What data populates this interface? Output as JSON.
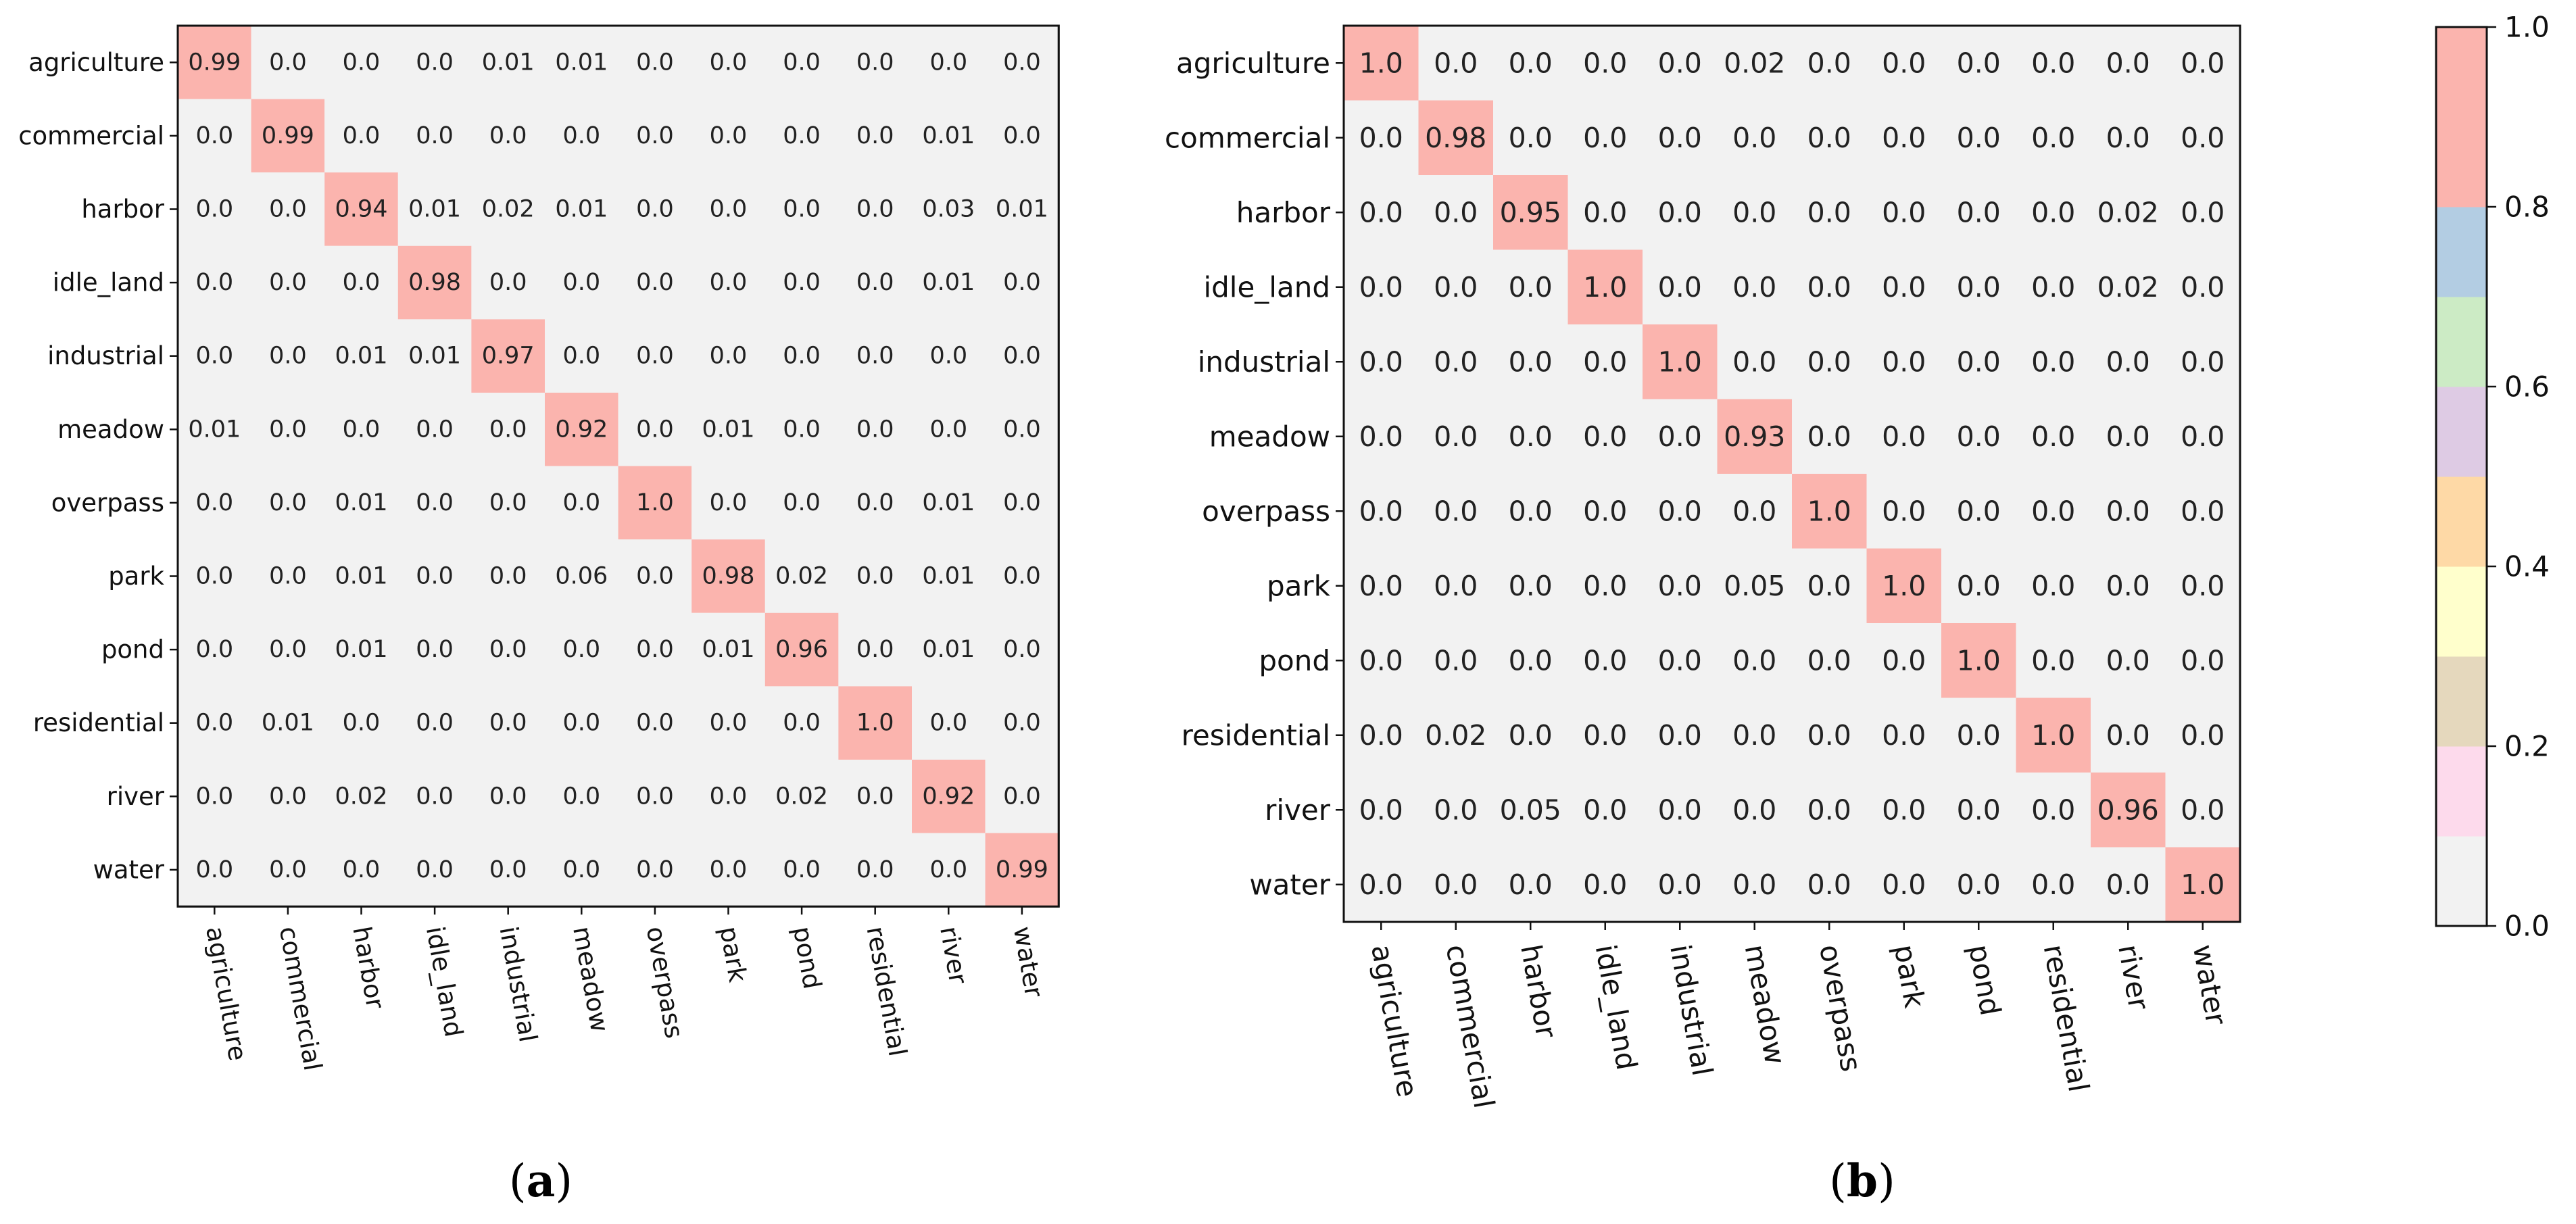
{
  "chart_data": [
    {
      "type": "heatmap",
      "panel_label": "a",
      "caption_open": "(",
      "caption_close": ")",
      "row_labels": [
        "agriculture",
        "commercial",
        "harbor",
        "idle_land",
        "industrial",
        "meadow",
        "overpass",
        "park",
        "pond",
        "residential",
        "river",
        "water"
      ],
      "col_labels": [
        "agriculture",
        "commercial",
        "harbor",
        "idle_land",
        "industrial",
        "meadow",
        "overpass",
        "park",
        "pond",
        "residential",
        "river",
        "water"
      ],
      "values": [
        [
          "0.99",
          "0.0",
          "0.0",
          "0.0",
          "0.01",
          "0.01",
          "0.0",
          "0.0",
          "0.0",
          "0.0",
          "0.0",
          "0.0"
        ],
        [
          "0.0",
          "0.99",
          "0.0",
          "0.0",
          "0.0",
          "0.0",
          "0.0",
          "0.0",
          "0.0",
          "0.0",
          "0.01",
          "0.0"
        ],
        [
          "0.0",
          "0.0",
          "0.94",
          "0.01",
          "0.02",
          "0.01",
          "0.0",
          "0.0",
          "0.0",
          "0.0",
          "0.03",
          "0.01"
        ],
        [
          "0.0",
          "0.0",
          "0.0",
          "0.98",
          "0.0",
          "0.0",
          "0.0",
          "0.0",
          "0.0",
          "0.0",
          "0.01",
          "0.0"
        ],
        [
          "0.0",
          "0.0",
          "0.01",
          "0.01",
          "0.97",
          "0.0",
          "0.0",
          "0.0",
          "0.0",
          "0.0",
          "0.0",
          "0.0"
        ],
        [
          "0.01",
          "0.0",
          "0.0",
          "0.0",
          "0.0",
          "0.92",
          "0.0",
          "0.01",
          "0.0",
          "0.0",
          "0.0",
          "0.0"
        ],
        [
          "0.0",
          "0.0",
          "0.01",
          "0.0",
          "0.0",
          "0.0",
          "1.0",
          "0.0",
          "0.0",
          "0.0",
          "0.01",
          "0.0"
        ],
        [
          "0.0",
          "0.0",
          "0.01",
          "0.0",
          "0.0",
          "0.06",
          "0.0",
          "0.98",
          "0.02",
          "0.0",
          "0.01",
          "0.0"
        ],
        [
          "0.0",
          "0.0",
          "0.01",
          "0.0",
          "0.0",
          "0.0",
          "0.0",
          "0.01",
          "0.96",
          "0.0",
          "0.01",
          "0.0"
        ],
        [
          "0.0",
          "0.01",
          "0.0",
          "0.0",
          "0.0",
          "0.0",
          "0.0",
          "0.0",
          "0.0",
          "1.0",
          "0.0",
          "0.0"
        ],
        [
          "0.0",
          "0.0",
          "0.02",
          "0.0",
          "0.0",
          "0.0",
          "0.0",
          "0.0",
          "0.02",
          "0.0",
          "0.92",
          "0.0"
        ],
        [
          "0.0",
          "0.0",
          "0.0",
          "0.0",
          "0.0",
          "0.0",
          "0.0",
          "0.0",
          "0.0",
          "0.0",
          "0.0",
          "0.99"
        ]
      ]
    },
    {
      "type": "heatmap",
      "panel_label": "b",
      "caption_open": "(",
      "caption_close": ")",
      "row_labels": [
        "agriculture",
        "commercial",
        "harbor",
        "idle_land",
        "industrial",
        "meadow",
        "overpass",
        "park",
        "pond",
        "residential",
        "river",
        "water"
      ],
      "col_labels": [
        "agriculture",
        "commercial",
        "harbor",
        "idle_land",
        "industrial",
        "meadow",
        "overpass",
        "park",
        "pond",
        "residential",
        "river",
        "water"
      ],
      "values": [
        [
          "1.0",
          "0.0",
          "0.0",
          "0.0",
          "0.0",
          "0.02",
          "0.0",
          "0.0",
          "0.0",
          "0.0",
          "0.0",
          "0.0"
        ],
        [
          "0.0",
          "0.98",
          "0.0",
          "0.0",
          "0.0",
          "0.0",
          "0.0",
          "0.0",
          "0.0",
          "0.0",
          "0.0",
          "0.0"
        ],
        [
          "0.0",
          "0.0",
          "0.95",
          "0.0",
          "0.0",
          "0.0",
          "0.0",
          "0.0",
          "0.0",
          "0.0",
          "0.02",
          "0.0"
        ],
        [
          "0.0",
          "0.0",
          "0.0",
          "1.0",
          "0.0",
          "0.0",
          "0.0",
          "0.0",
          "0.0",
          "0.0",
          "0.02",
          "0.0"
        ],
        [
          "0.0",
          "0.0",
          "0.0",
          "0.0",
          "1.0",
          "0.0",
          "0.0",
          "0.0",
          "0.0",
          "0.0",
          "0.0",
          "0.0"
        ],
        [
          "0.0",
          "0.0",
          "0.0",
          "0.0",
          "0.0",
          "0.93",
          "0.0",
          "0.0",
          "0.0",
          "0.0",
          "0.0",
          "0.0"
        ],
        [
          "0.0",
          "0.0",
          "0.0",
          "0.0",
          "0.0",
          "0.0",
          "1.0",
          "0.0",
          "0.0",
          "0.0",
          "0.0",
          "0.0"
        ],
        [
          "0.0",
          "0.0",
          "0.0",
          "0.0",
          "0.0",
          "0.05",
          "0.0",
          "1.0",
          "0.0",
          "0.0",
          "0.0",
          "0.0"
        ],
        [
          "0.0",
          "0.0",
          "0.0",
          "0.0",
          "0.0",
          "0.0",
          "0.0",
          "0.0",
          "1.0",
          "0.0",
          "0.0",
          "0.0"
        ],
        [
          "0.0",
          "0.02",
          "0.0",
          "0.0",
          "0.0",
          "0.0",
          "0.0",
          "0.0",
          "0.0",
          "1.0",
          "0.0",
          "0.0"
        ],
        [
          "0.0",
          "0.0",
          "0.05",
          "0.0",
          "0.0",
          "0.0",
          "0.0",
          "0.0",
          "0.0",
          "0.0",
          "0.96",
          "0.0"
        ],
        [
          "0.0",
          "0.0",
          "0.0",
          "0.0",
          "0.0",
          "0.0",
          "0.0",
          "0.0",
          "0.0",
          "0.0",
          "0.0",
          "1.0"
        ]
      ]
    }
  ],
  "colorbar": {
    "min": 0.0,
    "max": 1.0,
    "tick_labels": [
      "0.0",
      "0.2",
      "0.4",
      "0.6",
      "0.8",
      "1.0"
    ],
    "bands": [
      "#f2f2f2",
      "#fddaec",
      "#e5d8bd",
      "#ffffcc",
      "#fed9a6",
      "#decbe4",
      "#ccebc5",
      "#b3cde3",
      "#fbb4ae",
      "#fbb4ae"
    ]
  }
}
